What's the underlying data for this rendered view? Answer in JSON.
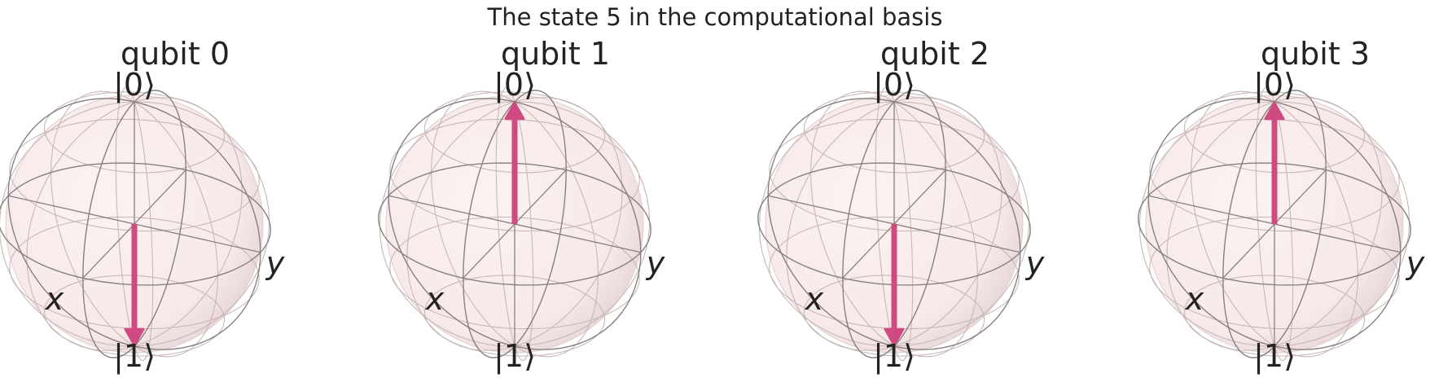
{
  "figure": {
    "title": "The state 5 in the computational basis"
  },
  "labels": {
    "ket0": "|0⟩",
    "ket1": "|1⟩",
    "x": "x",
    "y": "y"
  },
  "colors": {
    "sphere": "#f7e9e8",
    "sphere_edge": "#e4d2d2",
    "wire": "#888080",
    "wire_light": "#c9b7b7",
    "vector": "#d04a82"
  },
  "qubits": [
    {
      "title": "qubit 0",
      "bit": 1
    },
    {
      "title": "qubit 1",
      "bit": 0
    },
    {
      "title": "qubit 2",
      "bit": 1
    },
    {
      "title": "qubit 3",
      "bit": 0
    }
  ]
}
